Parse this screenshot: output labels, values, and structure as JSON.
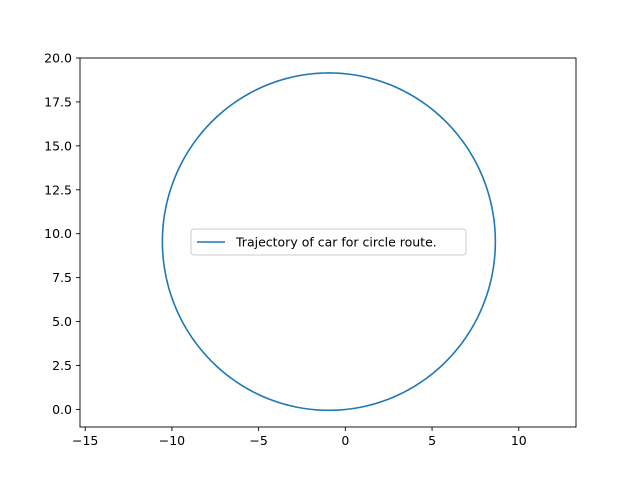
{
  "chart_data": {
    "type": "line",
    "title": "",
    "xlabel": "",
    "ylabel": "",
    "xlim": [
      -15.3,
      13.3
    ],
    "ylim": [
      -1.0,
      20.0
    ],
    "xticks": [
      -15,
      -10,
      -5,
      0,
      5,
      10
    ],
    "yticks": [
      0.0,
      2.5,
      5.0,
      7.5,
      10.0,
      12.5,
      15.0,
      17.5,
      20.0
    ],
    "xtick_labels": [
      "−15",
      "−10",
      "−5",
      "0",
      "5",
      "10"
    ],
    "ytick_labels": [
      "0.0",
      "2.5",
      "5.0",
      "7.5",
      "10.0",
      "12.5",
      "15.0",
      "17.5",
      "20.0"
    ],
    "grid": false,
    "legend_position": "center-left",
    "series": [
      {
        "name": "Trajectory of car for circle route.",
        "color": "#1f77b4",
        "shape": "circle",
        "center": [
          -0.95,
          9.55
        ],
        "radius": 9.6,
        "start_angle_deg": -90,
        "points": 240
      }
    ]
  }
}
